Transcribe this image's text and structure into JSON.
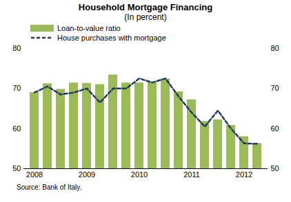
{
  "chart_data": {
    "type": "bar",
    "title": "Household Mortgage Financing",
    "subtitle": "(In percent)",
    "caption": "Source: Bank of Italy.",
    "categories": [
      "2008",
      null,
      null,
      null,
      "2009",
      null,
      null,
      null,
      "2010",
      null,
      null,
      null,
      "2011",
      null,
      null,
      null,
      "2012",
      null
    ],
    "series": [
      {
        "name": "Loan-to-value ratio",
        "type": "bar",
        "color": "#9bbb59",
        "values": [
          69,
          71.2,
          69.8,
          71.4,
          71.3,
          71,
          73.4,
          71.4,
          71.4,
          71.6,
          72.4,
          69.2,
          67.2,
          61.8,
          62.2,
          60.8,
          58,
          56.3
        ]
      },
      {
        "name": "House purchases with mortgage",
        "type": "line",
        "color": "#1f3864",
        "line_style": "dashed",
        "values": [
          69,
          70.5,
          68.5,
          69,
          70,
          66.5,
          70,
          70,
          72.5,
          71.5,
          72.5,
          68,
          64,
          60.5,
          64.5,
          60,
          56.3,
          56.2
        ]
      }
    ],
    "ylim": [
      50,
      80
    ],
    "yticks": [
      50,
      60,
      70,
      80
    ],
    "legend": "top-left",
    "grid": false
  }
}
